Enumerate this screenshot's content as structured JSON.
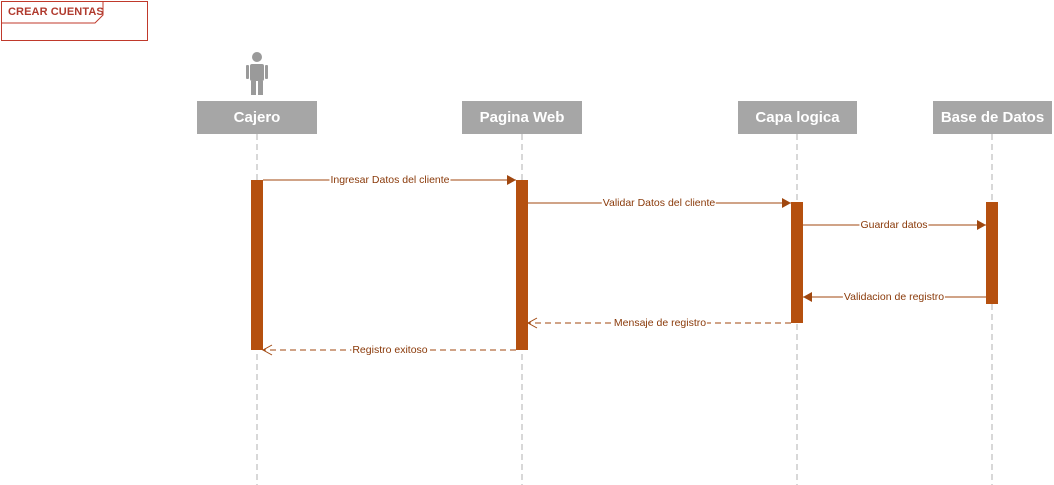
{
  "frame": {
    "title": "CREAR CUENTAS"
  },
  "participants": [
    {
      "id": "cajero",
      "label": "Cajero",
      "actor": true
    },
    {
      "id": "pagina",
      "label": "Pagina Web"
    },
    {
      "id": "logica",
      "label": "Capa logica"
    },
    {
      "id": "datos",
      "label": "Base de Datos"
    }
  ],
  "messages": [
    {
      "from": "cajero",
      "to": "pagina",
      "label": "Ingresar Datos del cliente",
      "style": "sync"
    },
    {
      "from": "pagina",
      "to": "logica",
      "label": "Validar Datos del cliente",
      "style": "sync"
    },
    {
      "from": "logica",
      "to": "datos",
      "label": "Guardar datos",
      "style": "sync"
    },
    {
      "from": "datos",
      "to": "logica",
      "label": "Validacion de registro",
      "style": "sync"
    },
    {
      "from": "logica",
      "to": "pagina",
      "label": "Mensaje de registro",
      "style": "return"
    },
    {
      "from": "pagina",
      "to": "cajero",
      "label": "Registro exitoso",
      "style": "return"
    }
  ],
  "colors": {
    "accent": "#a0470f",
    "activation": "#b5500f",
    "participant_bg": "#a6a6a6",
    "lifeline": "#b0b0b0",
    "actor": "#9a9a9a"
  }
}
